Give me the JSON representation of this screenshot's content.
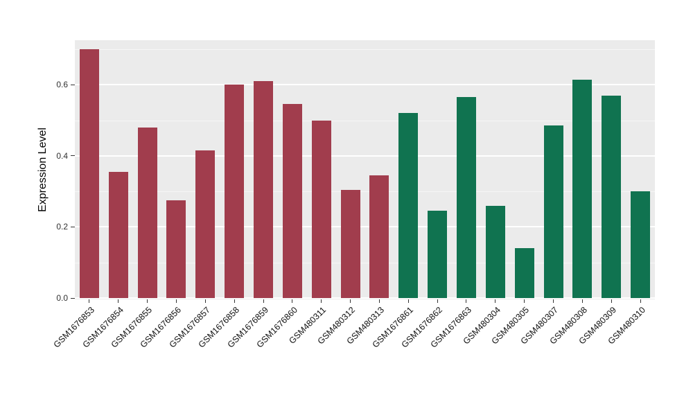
{
  "chart_data": {
    "type": "bar",
    "title": "",
    "xlabel": "",
    "ylabel": "Expression Level",
    "ylim": [
      0,
      0.725
    ],
    "yticks": [
      0.0,
      0.2,
      0.4,
      0.6
    ],
    "ytick_labels": [
      "0.0",
      "0.2",
      "0.4",
      "0.6"
    ],
    "minor_gridlines": [
      0.1,
      0.3,
      0.5,
      0.7
    ],
    "grid": true,
    "legend": "none",
    "panel_background": "#EBEBEB",
    "gridline_color": "#FFFFFF",
    "categories": [
      "GSM1676853",
      "GSM1676854",
      "GSM1676855",
      "GSM1676856",
      "GSM1676857",
      "GSM1676858",
      "GSM1676859",
      "GSM1676860",
      "GSM480311",
      "GSM480312",
      "GSM480313",
      "GSM1676861",
      "GSM1676862",
      "GSM1676863",
      "GSM480304",
      "GSM480305",
      "GSM480307",
      "GSM480308",
      "GSM480309",
      "GSM480310"
    ],
    "values": [
      0.7,
      0.355,
      0.48,
      0.275,
      0.415,
      0.6,
      0.61,
      0.545,
      0.5,
      0.305,
      0.345,
      0.52,
      0.245,
      0.565,
      0.26,
      0.14,
      0.485,
      0.615,
      0.57,
      0.3
    ],
    "groups": [
      "A",
      "A",
      "A",
      "A",
      "A",
      "A",
      "A",
      "A",
      "A",
      "A",
      "A",
      "B",
      "B",
      "B",
      "B",
      "B",
      "B",
      "B",
      "B",
      "B"
    ],
    "group_colors": {
      "A": "#A13D4D",
      "B": "#107350"
    }
  }
}
